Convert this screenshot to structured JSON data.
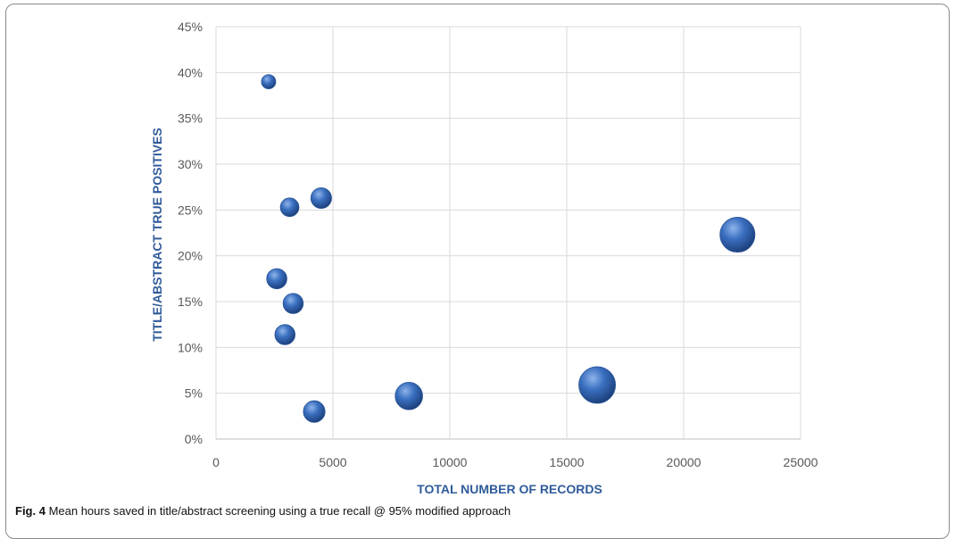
{
  "chart_data": {
    "type": "scatter",
    "title": "",
    "xlabel": "TOTAL NUMBER OF RECORDS",
    "ylabel": "TITLE/ABSTRACT TRUE POSITIVES",
    "xlim": [
      0,
      25000
    ],
    "ylim": [
      0,
      0.45
    ],
    "x_ticks": [
      "0",
      "5000",
      "10000",
      "15000",
      "20000",
      "25000"
    ],
    "y_ticks": [
      "0%",
      "5%",
      "10%",
      "15%",
      "20%",
      "25%",
      "30%",
      "35%",
      "40%",
      "45%"
    ],
    "grid": true,
    "bubble_color": "#3a6fc0",
    "points": [
      {
        "x": 2250,
        "y": 0.39,
        "size": 1.0
      },
      {
        "x": 4500,
        "y": 0.263,
        "size": 2.1
      },
      {
        "x": 3150,
        "y": 0.253,
        "size": 1.7
      },
      {
        "x": 22300,
        "y": 0.223,
        "size": 6.0
      },
      {
        "x": 2600,
        "y": 0.175,
        "size": 2.0
      },
      {
        "x": 3300,
        "y": 0.148,
        "size": 2.0
      },
      {
        "x": 2950,
        "y": 0.114,
        "size": 2.0
      },
      {
        "x": 8250,
        "y": 0.047,
        "size": 3.7
      },
      {
        "x": 16300,
        "y": 0.059,
        "size": 6.6
      },
      {
        "x": 4200,
        "y": 0.03,
        "size": 2.3
      }
    ]
  },
  "caption": {
    "label": "Fig. 4",
    "text": " Mean hours saved in title/abstract screening using a true recall @ 95% modified approach"
  }
}
